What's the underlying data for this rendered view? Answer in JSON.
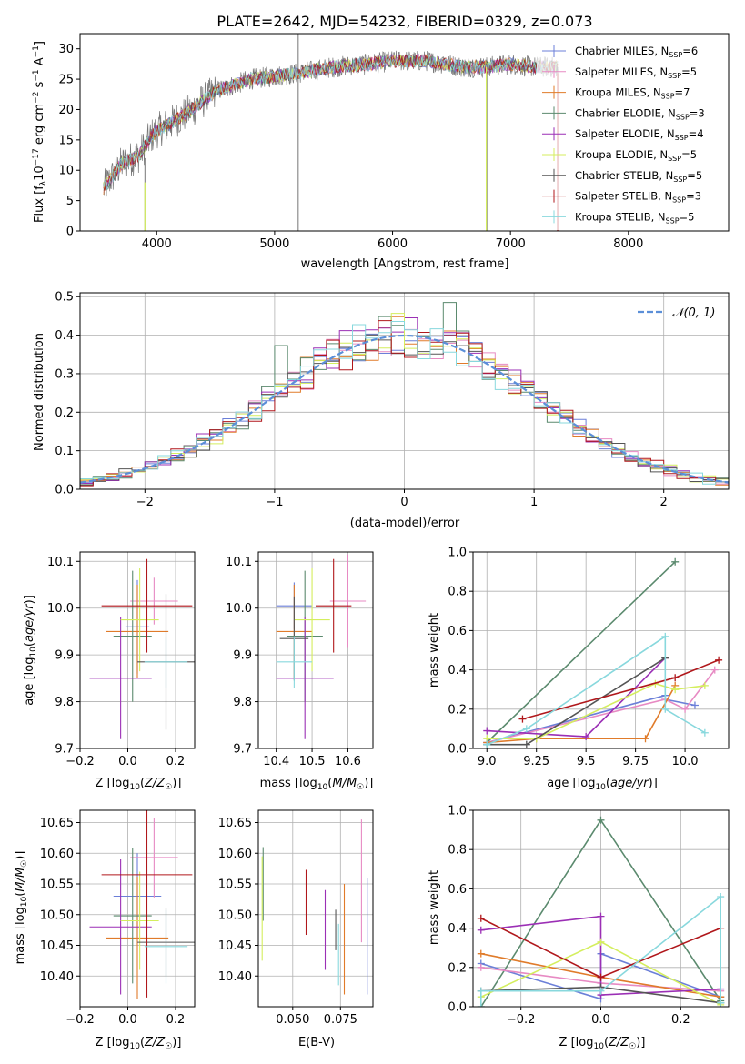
{
  "figure": {
    "spec_label": "PLATE=2642, MJD=54232, FIBERID=0329, z=0.073",
    "colors": {
      "Chabrier MILES": "#6b7fd8",
      "Salpeter MILES": "#e78ac3",
      "Kroupa MILES": "#e07b2a",
      "Chabrier ELODIE": "#5b8a6e",
      "Salpeter ELODIE": "#9b2fb5",
      "Kroupa ELODIE": "#d4ee5e",
      "Chabrier STELIB": "#555555",
      "Salpeter STELIB": "#b0171b",
      "Kroupa STELIB": "#88d8dd",
      "gaussian": "#5b8fd8",
      "data": "#777777"
    }
  },
  "chart_data": [
    {
      "id": "spectrum",
      "type": "line",
      "title": "PLATE=2642, MJD=54232, FIBERID=0329, z=0.073",
      "xlabel": "wavelength [Angstrom, rest frame]",
      "ylabel": "Flux [f_λ 10^-17 erg cm^-2 s^-1 A^-1]",
      "xlim": [
        3350,
        8850
      ],
      "ylim": [
        0,
        32.5
      ],
      "xticks": [
        4000,
        5000,
        6000,
        7000,
        8000
      ],
      "yticks": [
        0,
        5,
        10,
        15,
        20,
        25,
        30
      ],
      "legend_position": "right",
      "legend": [
        {
          "label": "Chabrier MILES, N",
          "sub": "SSP",
          "suffix": "=6",
          "model": "Chabrier MILES"
        },
        {
          "label": "Salpeter MILES, N",
          "sub": "SSP",
          "suffix": "=5",
          "model": "Salpeter MILES"
        },
        {
          "label": "Kroupa MILES, N",
          "sub": "SSP",
          "suffix": "=7",
          "model": "Kroupa MILES"
        },
        {
          "label": "Chabrier ELODIE, N",
          "sub": "SSP",
          "suffix": "=3",
          "model": "Chabrier ELODIE"
        },
        {
          "label": "Salpeter ELODIE, N",
          "sub": "SSP",
          "suffix": "=4",
          "model": "Salpeter ELODIE"
        },
        {
          "label": "Kroupa ELODIE, N",
          "sub": "SSP",
          "suffix": "=5",
          "model": "Kroupa ELODIE"
        },
        {
          "label": "Chabrier STELIB, N",
          "sub": "SSP",
          "suffix": "=5",
          "model": "Chabrier STELIB"
        },
        {
          "label": "Salpeter STELIB, N",
          "sub": "SSP",
          "suffix": "=3",
          "model": "Salpeter STELIB"
        },
        {
          "label": "Kroupa STELIB, N",
          "sub": "SSP",
          "suffix": "=5",
          "model": "Kroupa STELIB"
        }
      ],
      "continuum": {
        "x": [
          3550,
          3700,
          3850,
          3950,
          4000,
          4100,
          4300,
          4500,
          4800,
          5000,
          5200,
          5500,
          5800,
          6000,
          6300,
          6600,
          6800,
          7000,
          7200,
          7400
        ],
        "y": [
          7,
          11,
          12.5,
          15.5,
          16.5,
          17.5,
          20,
          23,
          25,
          25.5,
          26,
          27,
          27.5,
          28,
          28,
          27,
          27,
          27.5,
          27,
          27
        ]
      },
      "spikes": [
        {
          "x": 5200,
          "ymin": 0,
          "ymax": 32.5
        },
        {
          "x": 6800,
          "ymin": 0,
          "ymax": 27
        },
        {
          "x": 7400,
          "ymin": 0,
          "ymax": 27
        },
        {
          "x": 3900,
          "ymin": 0,
          "ymax": 12
        }
      ]
    },
    {
      "id": "residuals",
      "type": "line",
      "xlabel": "(data-model)/error",
      "ylabel": "Normed distribution",
      "xlim": [
        -2.5,
        2.5
      ],
      "ylim": [
        0,
        0.51
      ],
      "xticks": [
        -2,
        -1,
        0,
        1,
        2
      ],
      "yticks": [
        0.0,
        0.1,
        0.2,
        0.3,
        0.4,
        0.5
      ],
      "legend": [
        {
          "label": "𝒩(0, 1)",
          "style": "dashed"
        }
      ],
      "legend_position": "top-right",
      "bin_width": 0.1,
      "peak_bumps": [
        {
          "x": -0.95,
          "y": 0.373,
          "model": "Chabrier ELODIE"
        },
        {
          "x": 0.35,
          "y": 0.485,
          "model": "Chabrier ELODIE"
        },
        {
          "x": 0.05,
          "y": 0.445,
          "model": "Salpeter ELODIE"
        }
      ]
    },
    {
      "id": "age_vs_Z",
      "type": "scatter",
      "xlabel": "Z [log₁₀(Z/Z☉)]",
      "ylabel": "age  [log₁₀(age/yr)]",
      "xlim": [
        -0.2,
        0.28
      ],
      "ylim": [
        9.7,
        10.12
      ],
      "xticks": [
        -0.2,
        0.0,
        0.2
      ],
      "yticks": [
        9.7,
        9.8,
        9.9,
        10.0,
        10.1
      ],
      "points": [
        {
          "model": "Chabrier MILES",
          "x": 0.04,
          "y": 9.96,
          "xerr": 0.05,
          "yerr": 0.1
        },
        {
          "model": "Salpeter MILES",
          "x": 0.11,
          "y": 10.015,
          "xerr": 0.1,
          "yerr": 0.05
        },
        {
          "model": "Kroupa MILES",
          "x": 0.04,
          "y": 9.95,
          "xerr": 0.13,
          "yerr": 0.1
        },
        {
          "model": "Chabrier ELODIE",
          "x": 0.02,
          "y": 9.94,
          "xerr": 0.08,
          "yerr": 0.14
        },
        {
          "model": "Salpeter ELODIE",
          "x": -0.03,
          "y": 9.85,
          "xerr": 0.13,
          "yerr": 0.13
        },
        {
          "model": "Kroupa ELODIE",
          "x": 0.05,
          "y": 9.975,
          "xerr": 0.08,
          "yerr": 0.11
        },
        {
          "model": "Chabrier STELIB",
          "x": 0.16,
          "y": 9.885,
          "xerr": 0.12,
          "yerr": 0.145
        },
        {
          "model": "Salpeter STELIB",
          "x": 0.08,
          "y": 10.005,
          "xerr": 0.19,
          "yerr": 0.1
        },
        {
          "model": "Kroupa STELIB",
          "x": 0.16,
          "y": 9.885,
          "xerr": 0.09,
          "yerr": 0.055
        }
      ]
    },
    {
      "id": "age_vs_mass",
      "type": "scatter",
      "xlabel": "mass [log₁₀(M/M☉)]",
      "ylabel": "",
      "xlim": [
        10.35,
        10.67
      ],
      "ylim": [
        9.7,
        10.12
      ],
      "xticks": [
        10.4,
        10.5,
        10.6
      ],
      "yticks": [
        9.7,
        9.8,
        9.9,
        10.0,
        10.1
      ],
      "points": [
        {
          "model": "Chabrier MILES",
          "x": 10.45,
          "y": 10.005,
          "xerr": 0.05,
          "yerr": 0.05
        },
        {
          "model": "Salpeter MILES",
          "x": 10.6,
          "y": 10.015,
          "xerr": 0.05,
          "yerr": 0.1
        },
        {
          "model": "Kroupa MILES",
          "x": 10.45,
          "y": 9.95,
          "xerr": 0.05,
          "yerr": 0.1
        },
        {
          "model": "Chabrier ELODIE",
          "x": 10.48,
          "y": 9.94,
          "xerr": 0.05,
          "yerr": 0.14
        },
        {
          "model": "Salpeter ELODIE",
          "x": 10.48,
          "y": 9.85,
          "xerr": 0.08,
          "yerr": 0.13
        },
        {
          "model": "Kroupa ELODIE",
          "x": 10.5,
          "y": 9.975,
          "xerr": 0.05,
          "yerr": 0.11
        },
        {
          "model": "Chabrier STELIB",
          "x": 10.45,
          "y": 9.935,
          "xerr": 0.04,
          "yerr": 0.09
        },
        {
          "model": "Salpeter STELIB",
          "x": 10.56,
          "y": 10.005,
          "xerr": 0.05,
          "yerr": 0.1
        },
        {
          "model": "Kroupa STELIB",
          "x": 10.45,
          "y": 9.885,
          "xerr": 0.05,
          "yerr": 0.055
        }
      ]
    },
    {
      "id": "mass_weight_vs_age",
      "type": "line",
      "xlabel": "age  [log₁₀(age/yr)]",
      "ylabel": "mass weight",
      "xlim": [
        8.93,
        10.22
      ],
      "ylim": [
        0,
        1.0
      ],
      "xticks": [
        9.0,
        9.25,
        9.5,
        9.75,
        10.0
      ],
      "yticks": [
        0.0,
        0.2,
        0.4,
        0.6,
        0.8,
        1.0
      ],
      "series": [
        {
          "model": "Chabrier ELODIE",
          "x": [
            9.0,
            9.95
          ],
          "y": [
            0.03,
            0.95
          ]
        },
        {
          "model": "Chabrier MILES",
          "x": [
            9.0,
            9.9,
            9.9,
            10.05
          ],
          "y": [
            0.03,
            0.27,
            0.25,
            0.22
          ]
        },
        {
          "model": "Salpeter MILES",
          "x": [
            9.0,
            9.9,
            10.0,
            10.15
          ],
          "y": [
            0.03,
            0.25,
            0.2,
            0.4
          ]
        },
        {
          "model": "Kroupa MILES",
          "x": [
            9.0,
            9.25,
            9.8,
            9.95
          ],
          "y": [
            0.03,
            0.05,
            0.05,
            0.32
          ]
        },
        {
          "model": "Salpeter ELODIE",
          "x": [
            9.0,
            9.5,
            9.9
          ],
          "y": [
            0.09,
            0.06,
            0.46
          ]
        },
        {
          "model": "Kroupa ELODIE",
          "x": [
            9.0,
            9.25,
            9.85,
            9.95,
            10.1
          ],
          "y": [
            0.05,
            0.05,
            0.33,
            0.3,
            0.32
          ]
        },
        {
          "model": "Chabrier STELIB",
          "x": [
            9.0,
            9.2,
            9.9
          ],
          "y": [
            0.02,
            0.02,
            0.46
          ]
        },
        {
          "model": "Salpeter STELIB",
          "x": [
            9.18,
            9.95,
            10.17
          ],
          "y": [
            0.15,
            0.36,
            0.45
          ]
        },
        {
          "model": "Kroupa STELIB",
          "x": [
            9.0,
            9.2,
            9.9,
            9.9,
            10.1
          ],
          "y": [
            0.02,
            0.1,
            0.57,
            0.2,
            0.08
          ]
        }
      ]
    },
    {
      "id": "mass_vs_Z",
      "type": "scatter",
      "xlabel": "Z [log₁₀(Z/Z☉)]",
      "ylabel": "mass [log₁₀(M/M☉)]",
      "xlim": [
        -0.2,
        0.28
      ],
      "ylim": [
        10.35,
        10.67
      ],
      "xticks": [
        -0.2,
        0.0,
        0.2
      ],
      "yticks": [
        10.4,
        10.45,
        10.5,
        10.55,
        10.6,
        10.65
      ],
      "points": [
        {
          "model": "Chabrier MILES",
          "x": 0.04,
          "y": 10.53,
          "xerr": 0.1,
          "yerr": 0.07
        },
        {
          "model": "Salpeter MILES",
          "x": 0.11,
          "y": 10.593,
          "xerr": 0.1,
          "yerr": 0.065
        },
        {
          "model": "Kroupa MILES",
          "x": 0.04,
          "y": 10.462,
          "xerr": 0.13,
          "yerr": 0.1
        },
        {
          "model": "Chabrier ELODIE",
          "x": 0.02,
          "y": 10.498,
          "xerr": 0.08,
          "yerr": 0.11
        },
        {
          "model": "Salpeter ELODIE",
          "x": -0.03,
          "y": 10.48,
          "xerr": 0.13,
          "yerr": 0.11
        },
        {
          "model": "Kroupa ELODIE",
          "x": 0.05,
          "y": 10.49,
          "xerr": 0.08,
          "yerr": 0.08
        },
        {
          "model": "Chabrier STELIB",
          "x": 0.16,
          "y": 10.455,
          "xerr": 0.12,
          "yerr": 0.055
        },
        {
          "model": "Salpeter STELIB",
          "x": 0.08,
          "y": 10.565,
          "xerr": 0.19,
          "yerr": 0.2
        },
        {
          "model": "Kroupa STELIB",
          "x": 0.16,
          "y": 10.448,
          "xerr": 0.09,
          "yerr": 0.06
        }
      ]
    },
    {
      "id": "mass_vs_ebv",
      "type": "scatter",
      "xlabel": "E(B-V)",
      "ylabel": "",
      "xlim": [
        0.032,
        0.092
      ],
      "ylim": [
        10.35,
        10.67
      ],
      "xticks": [
        0.05,
        0.075
      ],
      "yticks": [
        10.4,
        10.45,
        10.5,
        10.55,
        10.6,
        10.65
      ],
      "points": [
        {
          "model": "Chabrier MILES",
          "x": 0.089,
          "y": 10.465,
          "yerr": 0.095
        },
        {
          "model": "Salpeter MILES",
          "x": 0.086,
          "y": 10.555,
          "yerr": 0.1
        },
        {
          "model": "Kroupa MILES",
          "x": 0.077,
          "y": 10.46,
          "yerr": 0.09
        },
        {
          "model": "Chabrier ELODIE",
          "x": 0.0345,
          "y": 10.55,
          "yerr": 0.06
        },
        {
          "model": "Salpeter ELODIE",
          "x": 0.067,
          "y": 10.475,
          "yerr": 0.065
        },
        {
          "model": "Kroupa ELODIE",
          "x": 0.034,
          "y": 10.51,
          "yerr": 0.085
        },
        {
          "model": "Chabrier STELIB",
          "x": 0.0725,
          "y": 10.475,
          "yerr": 0.033
        },
        {
          "model": "Salpeter STELIB",
          "x": 0.057,
          "y": 10.52,
          "yerr": 0.053
        },
        {
          "model": "Kroupa STELIB",
          "x": 0.074,
          "y": 10.435,
          "yerr": 0.05
        }
      ]
    },
    {
      "id": "mass_weight_vs_Z",
      "type": "line",
      "xlabel": "Z [log₁₀(Z/Z☉)]",
      "ylabel": "mass weight",
      "xlim": [
        -0.32,
        0.32
      ],
      "ylim": [
        0,
        1.0
      ],
      "xticks": [
        -0.2,
        0.0,
        0.2
      ],
      "yticks": [
        0.0,
        0.2,
        0.4,
        0.6,
        0.8,
        1.0
      ],
      "series": [
        {
          "model": "Chabrier ELODIE",
          "x": [
            -0.3,
            0.0,
            0.3
          ],
          "y": [
            0.0,
            0.95,
            0.03
          ]
        },
        {
          "model": "Chabrier MILES",
          "x": [
            -0.3,
            0.0,
            0.0,
            0.3
          ],
          "y": [
            0.22,
            0.04,
            0.27,
            0.05
          ]
        },
        {
          "model": "Salpeter MILES",
          "x": [
            -0.3,
            0.0,
            0.3
          ],
          "y": [
            0.2,
            0.12,
            0.08
          ]
        },
        {
          "model": "Kroupa MILES",
          "x": [
            -0.3,
            0.0,
            0.3
          ],
          "y": [
            0.27,
            0.15,
            0.05
          ]
        },
        {
          "model": "Salpeter ELODIE",
          "x": [
            -0.3,
            0.0,
            0.0,
            0.3
          ],
          "y": [
            0.39,
            0.46,
            0.06,
            0.09
          ]
        },
        {
          "model": "Kroupa ELODIE",
          "x": [
            -0.3,
            0.0,
            0.3
          ],
          "y": [
            0.05,
            0.33,
            0.01
          ]
        },
        {
          "model": "Chabrier STELIB",
          "x": [
            -0.3,
            0.0,
            0.3
          ],
          "y": [
            0.08,
            0.1,
            0.02
          ]
        },
        {
          "model": "Salpeter STELIB",
          "x": [
            -0.3,
            0.0,
            0.3
          ],
          "y": [
            0.45,
            0.15,
            0.4
          ]
        },
        {
          "model": "Kroupa STELIB",
          "x": [
            -0.3,
            -0.3,
            0.0,
            0.3,
            0.3
          ],
          "y": [
            0.0,
            0.08,
            0.08,
            0.56,
            0.02
          ]
        }
      ]
    }
  ]
}
